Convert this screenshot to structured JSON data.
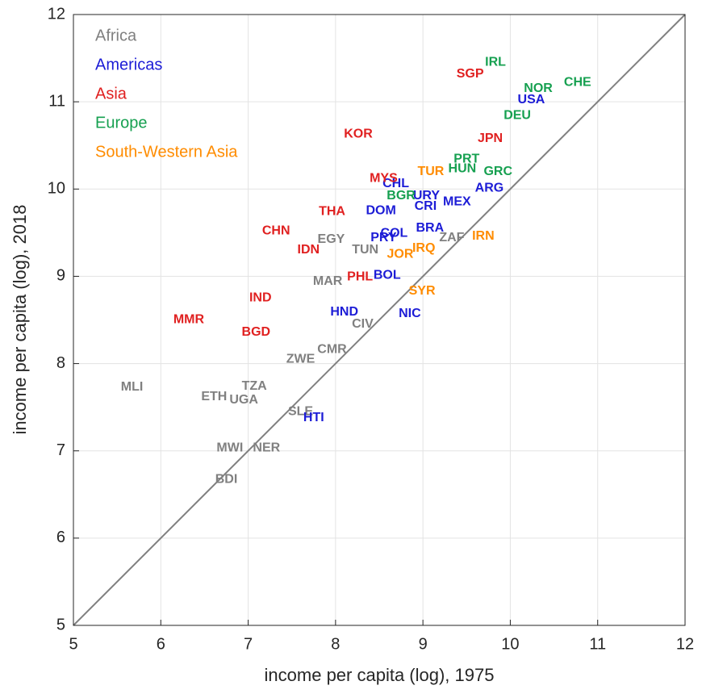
{
  "chart_data": {
    "type": "scatter",
    "xlabel": "income per capita (log), 1975",
    "ylabel": "income per capita (log), 2018",
    "xlim": [
      5,
      12
    ],
    "ylim": [
      5,
      12
    ],
    "xticks": [
      5,
      6,
      7,
      8,
      9,
      10,
      11,
      12
    ],
    "yticks": [
      5,
      6,
      7,
      8,
      9,
      10,
      11,
      12
    ],
    "grid": true,
    "legend": "upper left",
    "series": [
      {
        "name": "Africa",
        "color": "#808080",
        "labels": [
          "EGY",
          "TUN",
          "ZAF",
          "MAR",
          "CIV",
          "CMR",
          "ZWE",
          "MLI",
          "TZA",
          "ETH",
          "UGA",
          "SLE",
          "MWI",
          "NER",
          "BDI"
        ],
        "x": [
          7.95,
          8.34,
          9.33,
          7.91,
          8.31,
          7.96,
          7.6,
          5.67,
          7.07,
          6.61,
          6.95,
          7.6,
          6.79,
          7.21,
          6.75
        ],
        "y": [
          9.42,
          9.3,
          9.44,
          8.94,
          8.45,
          8.16,
          8.05,
          7.73,
          7.74,
          7.62,
          7.58,
          7.45,
          7.03,
          7.03,
          6.67
        ]
      },
      {
        "name": "Americas",
        "color": "#1c1cd6",
        "labels": [
          "USA",
          "CHL",
          "URY",
          "MEX",
          "ARG",
          "DOM",
          "CRI",
          "BRA",
          "COL",
          "PRY",
          "BOL",
          "HND",
          "NIC",
          "HTI"
        ],
        "x": [
          10.24,
          8.69,
          9.04,
          9.39,
          9.76,
          8.52,
          9.03,
          9.08,
          8.67,
          8.55,
          8.59,
          8.1,
          8.85,
          7.75
        ],
        "y": [
          11.02,
          10.06,
          9.92,
          9.85,
          10.01,
          9.75,
          9.8,
          9.55,
          9.49,
          9.44,
          9.01,
          8.59,
          8.57,
          7.38
        ]
      },
      {
        "name": "Asia",
        "color": "#e02020",
        "labels": [
          "SGP",
          "KOR",
          "JPN",
          "MYS",
          "THA",
          "CHN",
          "IDN",
          "PHL",
          "IND",
          "MMR",
          "BGD"
        ],
        "x": [
          9.54,
          8.26,
          9.77,
          8.55,
          7.96,
          7.32,
          7.69,
          8.28,
          7.14,
          6.32,
          7.09
        ],
        "y": [
          11.32,
          10.63,
          10.58,
          10.12,
          9.74,
          9.52,
          9.3,
          8.99,
          8.75,
          8.5,
          8.36
        ]
      },
      {
        "name": "Europe",
        "color": "#16a050",
        "labels": [
          "IRL",
          "NOR",
          "CHE",
          "DEU",
          "PRT",
          "HUN",
          "GRC",
          "BGR"
        ],
        "x": [
          9.83,
          10.32,
          10.77,
          10.08,
          9.5,
          9.45,
          9.86,
          8.75
        ],
        "y": [
          11.45,
          11.15,
          11.22,
          10.84,
          10.34,
          10.23,
          10.2,
          9.92
        ]
      },
      {
        "name": "South-Western Asia",
        "color": "#ff8c00",
        "labels": [
          "TUR",
          "IRN",
          "IRQ",
          "JOR",
          "SYR"
        ],
        "x": [
          9.09,
          9.69,
          9.01,
          8.74,
          8.99
        ],
        "y": [
          10.2,
          9.46,
          9.32,
          9.25,
          8.83
        ]
      }
    ]
  }
}
